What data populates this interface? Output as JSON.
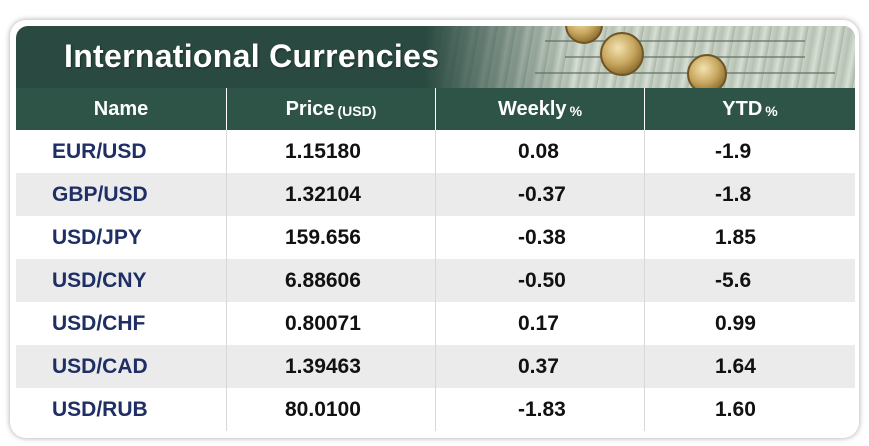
{
  "title": "International Currencies",
  "colors": {
    "header_bg": "#2a4a41",
    "column_header_bg": "#2e5448",
    "pair_name_text": "#1f2f66",
    "alt_row_bg": "#ebebeb"
  },
  "chart_data": {
    "type": "table",
    "title": "International Currencies",
    "columns": [
      {
        "label": "Name",
        "unit": ""
      },
      {
        "label": "Price",
        "unit": "(USD)"
      },
      {
        "label": "Weekly",
        "unit": "%"
      },
      {
        "label": "YTD",
        "unit": "%"
      }
    ],
    "rows": [
      {
        "name": "EUR/USD",
        "price": "1.15180",
        "weekly": "0.08",
        "ytd": "-1.9"
      },
      {
        "name": "GBP/USD",
        "price": "1.32104",
        "weekly": "-0.37",
        "ytd": "-1.8"
      },
      {
        "name": "USD/JPY",
        "price": "159.656",
        "weekly": "-0.38",
        "ytd": "1.85"
      },
      {
        "name": "USD/CNY",
        "price": "6.88606",
        "weekly": "-0.50",
        "ytd": "-5.6"
      },
      {
        "name": "USD/CHF",
        "price": "0.80071",
        "weekly": "0.17",
        "ytd": "0.99"
      },
      {
        "name": "USD/CAD",
        "price": "1.39463",
        "weekly": "0.37",
        "ytd": "1.64"
      },
      {
        "name": "USD/RUB",
        "price": "80.0100",
        "weekly": "-1.83",
        "ytd": "1.60"
      }
    ]
  }
}
